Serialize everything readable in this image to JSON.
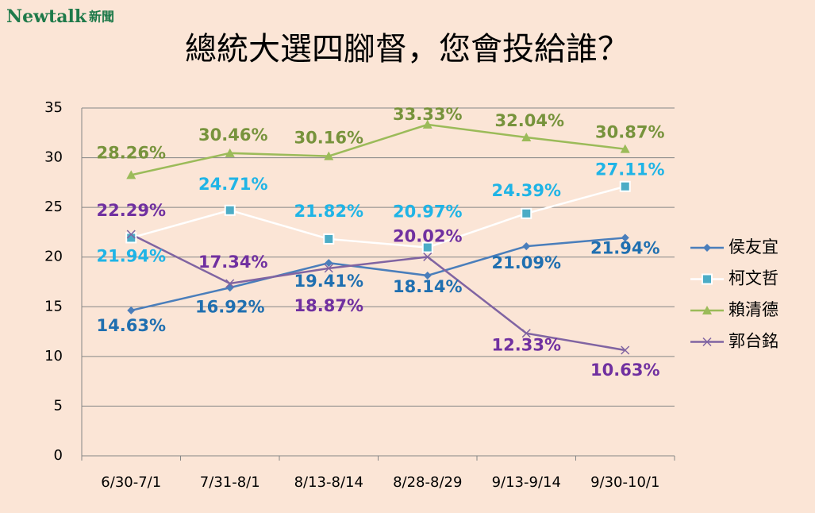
{
  "logo": {
    "brand": "Newtalk",
    "suffix": "新聞"
  },
  "chart_data": {
    "type": "line",
    "title": "總統大選四腳督，您會投給誰？",
    "categories": [
      "6/30-7/1",
      "7/31-8/1",
      "8/13-8/14",
      "8/28-8/29",
      "9/13-9/14",
      "9/30-10/1"
    ],
    "ylim": [
      0,
      35
    ],
    "yticks": [
      0,
      5,
      10,
      15,
      20,
      25,
      30,
      35
    ],
    "grid": true,
    "series": [
      {
        "name": "侯友宜",
        "color": "#4a7ebb",
        "marker": "diamond",
        "values": [
          14.63,
          16.92,
          19.41,
          18.14,
          21.09,
          21.94
        ],
        "value_labels": [
          "14.63%",
          "16.92%",
          "19.41%",
          "18.14%",
          "21.09%",
          "21.94%"
        ]
      },
      {
        "name": "柯文哲",
        "color": "#4bacc6",
        "marker": "square",
        "values": [
          21.94,
          24.71,
          21.82,
          20.97,
          24.39,
          27.11
        ],
        "value_labels": [
          "21.94%",
          "24.71%",
          "21.82%",
          "20.97%",
          "24.39%",
          "27.11%"
        ]
      },
      {
        "name": "賴清德",
        "color": "#9bbb59",
        "marker": "triangle",
        "values": [
          28.26,
          30.46,
          30.16,
          33.33,
          32.04,
          30.87
        ],
        "value_labels": [
          "28.26%",
          "30.46%",
          "30.16%",
          "33.33%",
          "32.04%",
          "30.87%"
        ]
      },
      {
        "name": "郭台銘",
        "color": "#8064a2",
        "marker": "x",
        "values": [
          22.29,
          17.34,
          18.87,
          20.02,
          12.33,
          10.63
        ],
        "value_labels": [
          "22.29%",
          "17.34%",
          "18.87%",
          "20.02%",
          "12.33%",
          "10.63%"
        ]
      }
    ]
  }
}
